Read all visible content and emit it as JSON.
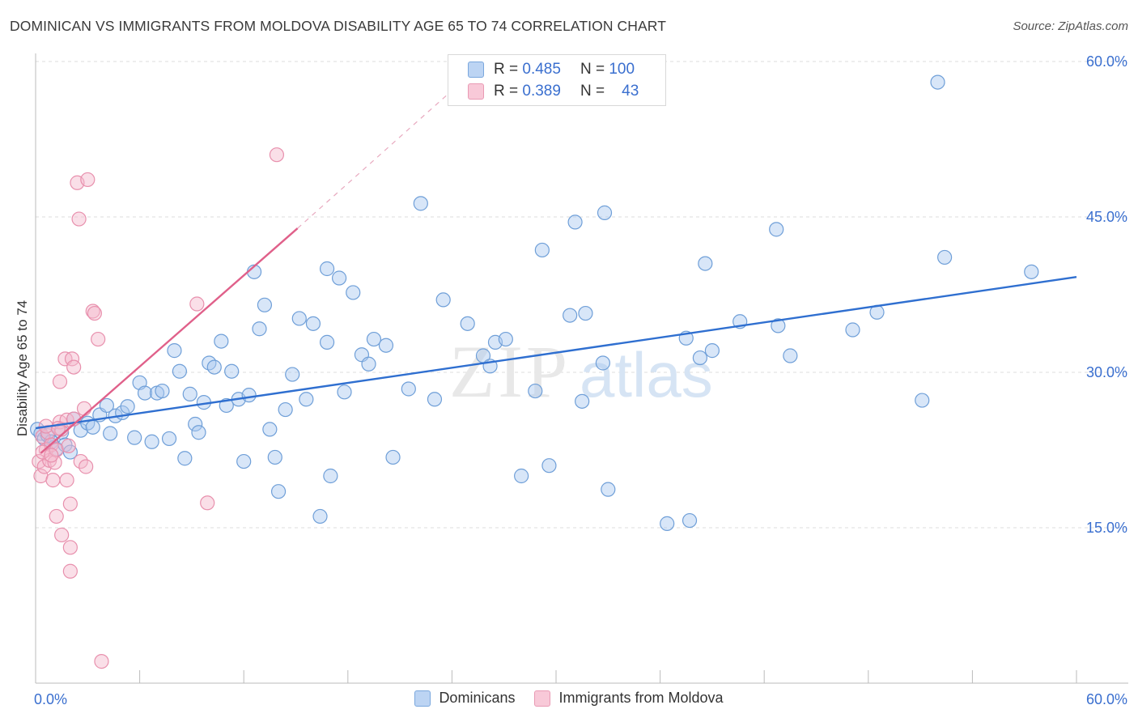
{
  "title": "DOMINICAN VS IMMIGRANTS FROM MOLDOVA DISABILITY AGE 65 TO 74 CORRELATION CHART",
  "source": "Source: ZipAtlas.com",
  "watermark": {
    "zip": "ZIP",
    "atlas": "atlas"
  },
  "legend": {
    "rows": [
      {
        "r_label": "R =",
        "r_value": "0.485",
        "n_label": "N =",
        "n_value": "100"
      },
      {
        "r_label": "R =",
        "r_value": "0.389",
        "n_label": "N =",
        "n_value": "43"
      }
    ]
  },
  "colors": {
    "blue_fill": "#a9c8ef",
    "blue_stroke": "#6f9fd8",
    "blue_line": "#2f6fd0",
    "pink_fill": "#f5b8cc",
    "pink_stroke": "#e890ad",
    "pink_line": "#e0608a",
    "axis_text": "#3a6fcf",
    "grid": "#dddddd"
  },
  "chart_data": {
    "type": "scatter",
    "title": "DOMINICAN VS IMMIGRANTS FROM MOLDOVA DISABILITY AGE 65 TO 74 CORRELATION CHART",
    "xlabel": "",
    "ylabel": "Disability Age 65 to 74",
    "xlim": [
      0,
      60
    ],
    "ylim": [
      0,
      60
    ],
    "x_tick_labels": [
      "0.0%",
      "60.0%"
    ],
    "y_tick_labels": [
      "15.0%",
      "30.0%",
      "45.0%",
      "60.0%"
    ],
    "y_ticks": [
      15,
      30,
      45,
      60
    ],
    "series": [
      {
        "name": "Dominicans",
        "r": 0.485,
        "n": 100,
        "trend": {
          "x": [
            0,
            60
          ],
          "y": [
            24.6,
            39.2
          ]
        },
        "points": [
          [
            0.1,
            24.5
          ],
          [
            0.3,
            24.1
          ],
          [
            0.5,
            23.6
          ],
          [
            0.7,
            23.9
          ],
          [
            0.9,
            23.3
          ],
          [
            1.2,
            22.6
          ],
          [
            1.5,
            24.2
          ],
          [
            1.7,
            23.0
          ],
          [
            2.0,
            22.3
          ],
          [
            2.2,
            25.5
          ],
          [
            2.6,
            24.4
          ],
          [
            3.0,
            25.1
          ],
          [
            3.3,
            24.7
          ],
          [
            3.7,
            25.9
          ],
          [
            4.1,
            26.8
          ],
          [
            4.3,
            24.1
          ],
          [
            4.6,
            25.8
          ],
          [
            5.0,
            26.1
          ],
          [
            5.3,
            26.7
          ],
          [
            5.7,
            23.7
          ],
          [
            6.0,
            29.0
          ],
          [
            6.3,
            28.0
          ],
          [
            6.7,
            23.3
          ],
          [
            7.0,
            28.0
          ],
          [
            7.3,
            28.2
          ],
          [
            7.7,
            23.6
          ],
          [
            8.0,
            32.1
          ],
          [
            8.3,
            30.1
          ],
          [
            8.6,
            21.7
          ],
          [
            8.9,
            27.9
          ],
          [
            9.2,
            25.0
          ],
          [
            9.4,
            24.2
          ],
          [
            9.7,
            27.1
          ],
          [
            10.0,
            30.9
          ],
          [
            10.3,
            30.5
          ],
          [
            10.7,
            33.0
          ],
          [
            11.0,
            26.8
          ],
          [
            11.3,
            30.1
          ],
          [
            11.7,
            27.4
          ],
          [
            12.0,
            21.4
          ],
          [
            12.3,
            27.8
          ],
          [
            12.6,
            39.7
          ],
          [
            12.9,
            34.2
          ],
          [
            13.2,
            36.5
          ],
          [
            13.5,
            24.5
          ],
          [
            13.8,
            21.8
          ],
          [
            14.0,
            18.5
          ],
          [
            14.4,
            26.4
          ],
          [
            14.8,
            29.8
          ],
          [
            15.2,
            35.2
          ],
          [
            15.6,
            27.4
          ],
          [
            16.0,
            34.7
          ],
          [
            16.4,
            16.1
          ],
          [
            16.8,
            32.9
          ],
          [
            17.0,
            20.0
          ],
          [
            17.5,
            39.1
          ],
          [
            17.8,
            28.1
          ],
          [
            18.3,
            37.7
          ],
          [
            18.8,
            31.7
          ],
          [
            19.2,
            30.8
          ],
          [
            19.5,
            33.2
          ],
          [
            20.2,
            32.6
          ],
          [
            20.6,
            21.8
          ],
          [
            21.5,
            28.4
          ],
          [
            22.2,
            46.3
          ],
          [
            23.0,
            27.4
          ],
          [
            23.5,
            37.0
          ],
          [
            24.9,
            34.7
          ],
          [
            25.8,
            31.6
          ],
          [
            26.2,
            30.6
          ],
          [
            26.5,
            32.9
          ],
          [
            27.1,
            33.2
          ],
          [
            28.0,
            20.0
          ],
          [
            28.8,
            28.2
          ],
          [
            29.2,
            41.8
          ],
          [
            29.6,
            21.0
          ],
          [
            30.8,
            35.5
          ],
          [
            31.1,
            44.5
          ],
          [
            31.5,
            27.2
          ],
          [
            31.7,
            35.7
          ],
          [
            32.7,
            30.9
          ],
          [
            32.8,
            45.4
          ],
          [
            33.0,
            18.7
          ],
          [
            36.4,
            15.4
          ],
          [
            37.5,
            33.3
          ],
          [
            37.7,
            15.7
          ],
          [
            38.3,
            31.4
          ],
          [
            38.6,
            40.5
          ],
          [
            39.0,
            32.1
          ],
          [
            40.6,
            34.9
          ],
          [
            42.7,
            43.8
          ],
          [
            42.8,
            34.5
          ],
          [
            43.5,
            31.6
          ],
          [
            47.1,
            34.1
          ],
          [
            48.5,
            35.8
          ],
          [
            51.1,
            27.3
          ],
          [
            52.0,
            58.0
          ],
          [
            52.4,
            41.1
          ],
          [
            57.4,
            39.7
          ],
          [
            16.8,
            40.0
          ]
        ]
      },
      {
        "name": "Immigrants from Moldova",
        "r": 0.389,
        "n": 43,
        "trend": {
          "x": [
            0.3,
            15.1
          ],
          "y": [
            22.2,
            43.9
          ]
        },
        "trend_extension": {
          "x": [
            15.1,
            24.0
          ],
          "y": [
            43.9,
            57.2
          ]
        },
        "points": [
          [
            0.2,
            21.4
          ],
          [
            0.3,
            20.0
          ],
          [
            0.4,
            23.8
          ],
          [
            0.5,
            20.9
          ],
          [
            0.6,
            22.5
          ],
          [
            0.7,
            24.2
          ],
          [
            0.8,
            21.5
          ],
          [
            0.9,
            23.0
          ],
          [
            1.0,
            19.6
          ],
          [
            1.1,
            21.3
          ],
          [
            1.2,
            22.5
          ],
          [
            1.2,
            16.1
          ],
          [
            1.4,
            25.2
          ],
          [
            1.4,
            29.1
          ],
          [
            1.5,
            24.5
          ],
          [
            1.5,
            14.3
          ],
          [
            1.7,
            31.3
          ],
          [
            1.8,
            25.4
          ],
          [
            1.8,
            19.6
          ],
          [
            1.9,
            22.9
          ],
          [
            2.0,
            13.1
          ],
          [
            2.0,
            10.8
          ],
          [
            2.0,
            17.3
          ],
          [
            2.1,
            31.3
          ],
          [
            2.2,
            30.5
          ],
          [
            2.2,
            25.5
          ],
          [
            2.4,
            48.3
          ],
          [
            2.5,
            44.8
          ],
          [
            2.6,
            21.4
          ],
          [
            2.8,
            26.5
          ],
          [
            2.9,
            20.9
          ],
          [
            3.0,
            48.6
          ],
          [
            3.3,
            35.9
          ],
          [
            3.4,
            35.7
          ],
          [
            3.6,
            33.2
          ],
          [
            3.8,
            2.1
          ],
          [
            9.3,
            36.6
          ],
          [
            9.9,
            17.4
          ],
          [
            13.9,
            51.0
          ],
          [
            0.4,
            22.3
          ],
          [
            0.6,
            24.8
          ],
          [
            0.9,
            22.0
          ],
          [
            1.3,
            24.6
          ]
        ]
      }
    ]
  }
}
